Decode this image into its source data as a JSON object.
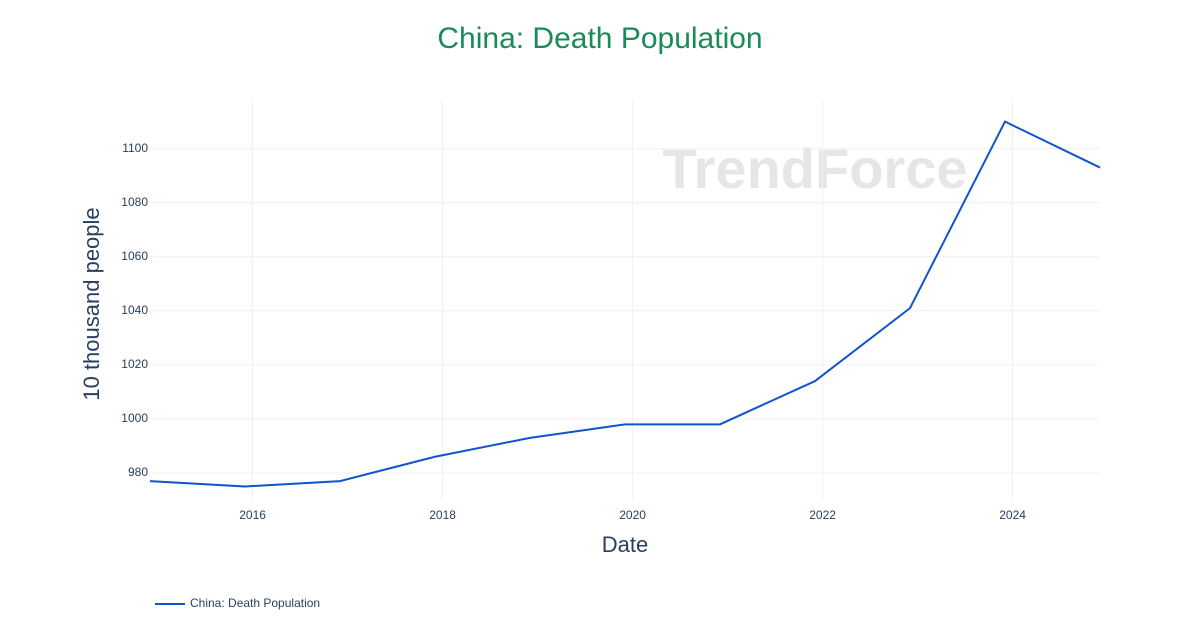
{
  "chart_data": {
    "type": "line",
    "title": "China: Death Population",
    "watermark": "TrendForce",
    "x_label": "Date",
    "y_label": "10 thousand people",
    "x": [
      2014.92,
      2015.92,
      2016.92,
      2017.92,
      2018.92,
      2019.92,
      2020.92,
      2021.92,
      2022.92,
      2023.92,
      2024.92
    ],
    "series": [
      {
        "name": "China: Death Population",
        "color": "#1155cc",
        "values": [
          977,
          975,
          977,
          986,
          993,
          998,
          998,
          1014,
          1041,
          1110,
          1093
        ]
      }
    ],
    "xlim": [
      2014.92,
      2024.92
    ],
    "xticks": [
      2016,
      2018,
      2020,
      2022,
      2024
    ],
    "ylim": [
      970,
      1118
    ],
    "yticks": [
      980,
      1000,
      1020,
      1040,
      1060,
      1080,
      1100
    ],
    "grid": true,
    "legend": "bottom-left"
  }
}
